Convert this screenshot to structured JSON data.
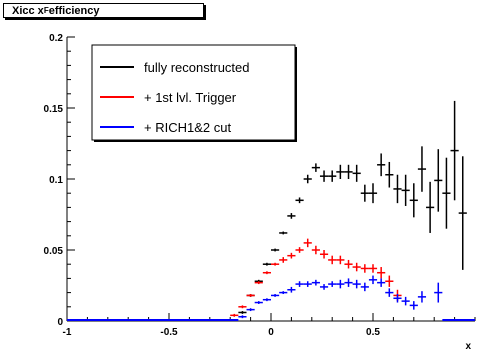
{
  "header": {
    "title_main": "Xicc x",
    "title_sub": "F",
    "title_tail": " efficiency"
  },
  "chart_data": {
    "type": "scatter",
    "title": "Xicc x_F efficiency",
    "xlabel": "x",
    "ylabel": "",
    "xlim": [
      -1,
      1
    ],
    "ylim": [
      0,
      0.2
    ],
    "grid": false,
    "legend_position": "top-left",
    "x_ticks": [
      -1,
      -0.5,
      0,
      0.5
    ],
    "x_tick_labels": [
      "-1",
      "-0.5",
      "0",
      "0.5"
    ],
    "y_ticks": [
      0,
      0.05,
      0.1,
      0.15,
      0.2
    ],
    "y_tick_labels": [
      "0",
      "0.05",
      "0.1",
      "0.15",
      "0.2"
    ],
    "bin_half_width": 0.02,
    "series": [
      {
        "name": "fully reconstructed",
        "color": "#000000",
        "points": [
          {
            "x": -0.14,
            "y": 0.006,
            "err": 0.001
          },
          {
            "x": -0.1,
            "y": 0.018,
            "err": 0.001
          },
          {
            "x": -0.06,
            "y": 0.028,
            "err": 0.001
          },
          {
            "x": -0.02,
            "y": 0.04,
            "err": 0.001
          },
          {
            "x": 0.02,
            "y": 0.05,
            "err": 0.001
          },
          {
            "x": 0.06,
            "y": 0.062,
            "err": 0.001
          },
          {
            "x": 0.1,
            "y": 0.074,
            "err": 0.002
          },
          {
            "x": 0.14,
            "y": 0.085,
            "err": 0.002
          },
          {
            "x": 0.18,
            "y": 0.1,
            "err": 0.003
          },
          {
            "x": 0.22,
            "y": 0.108,
            "err": 0.003
          },
          {
            "x": 0.26,
            "y": 0.102,
            "err": 0.004
          },
          {
            "x": 0.3,
            "y": 0.102,
            "err": 0.004
          },
          {
            "x": 0.34,
            "y": 0.105,
            "err": 0.005
          },
          {
            "x": 0.38,
            "y": 0.105,
            "err": 0.005
          },
          {
            "x": 0.42,
            "y": 0.104,
            "err": 0.006
          },
          {
            "x": 0.46,
            "y": 0.09,
            "err": 0.006
          },
          {
            "x": 0.5,
            "y": 0.09,
            "err": 0.007
          },
          {
            "x": 0.54,
            "y": 0.11,
            "err": 0.008
          },
          {
            "x": 0.58,
            "y": 0.103,
            "err": 0.009
          },
          {
            "x": 0.62,
            "y": 0.093,
            "err": 0.01
          },
          {
            "x": 0.66,
            "y": 0.092,
            "err": 0.011
          },
          {
            "x": 0.7,
            "y": 0.085,
            "err": 0.012
          },
          {
            "x": 0.74,
            "y": 0.107,
            "err": 0.016
          },
          {
            "x": 0.78,
            "y": 0.08,
            "err": 0.018
          },
          {
            "x": 0.82,
            "y": 0.099,
            "err": 0.022
          },
          {
            "x": 0.86,
            "y": 0.09,
            "err": 0.025
          },
          {
            "x": 0.9,
            "y": 0.12,
            "err": 0.035
          },
          {
            "x": 0.94,
            "y": 0.076,
            "err": 0.04
          }
        ]
      },
      {
        "name": "+ 1st lvl. Trigger",
        "color": "#ff0000",
        "points": [
          {
            "x": -0.18,
            "y": 0.004,
            "err": 0.001
          },
          {
            "x": -0.14,
            "y": 0.01,
            "err": 0.001
          },
          {
            "x": -0.1,
            "y": 0.018,
            "err": 0.001
          },
          {
            "x": -0.06,
            "y": 0.027,
            "err": 0.001
          },
          {
            "x": -0.02,
            "y": 0.034,
            "err": 0.001
          },
          {
            "x": 0.02,
            "y": 0.04,
            "err": 0.001
          },
          {
            "x": 0.06,
            "y": 0.043,
            "err": 0.002
          },
          {
            "x": 0.1,
            "y": 0.046,
            "err": 0.002
          },
          {
            "x": 0.14,
            "y": 0.05,
            "err": 0.002
          },
          {
            "x": 0.18,
            "y": 0.055,
            "err": 0.003
          },
          {
            "x": 0.22,
            "y": 0.05,
            "err": 0.003
          },
          {
            "x": 0.26,
            "y": 0.047,
            "err": 0.003
          },
          {
            "x": 0.3,
            "y": 0.043,
            "err": 0.003
          },
          {
            "x": 0.34,
            "y": 0.043,
            "err": 0.003
          },
          {
            "x": 0.38,
            "y": 0.04,
            "err": 0.003
          },
          {
            "x": 0.42,
            "y": 0.038,
            "err": 0.003
          },
          {
            "x": 0.46,
            "y": 0.037,
            "err": 0.003
          },
          {
            "x": 0.5,
            "y": 0.037,
            "err": 0.003
          },
          {
            "x": 0.54,
            "y": 0.034,
            "err": 0.004
          },
          {
            "x": 0.58,
            "y": 0.028,
            "err": 0.004
          },
          {
            "x": 0.62,
            "y": 0.018,
            "err": 0.004
          }
        ]
      },
      {
        "name": "+ RICH1&2 cut",
        "color": "#0000ff",
        "points": [
          {
            "x": -0.14,
            "y": 0.003,
            "err": 0.001
          },
          {
            "x": -0.1,
            "y": 0.008,
            "err": 0.001
          },
          {
            "x": -0.06,
            "y": 0.013,
            "err": 0.001
          },
          {
            "x": -0.02,
            "y": 0.015,
            "err": 0.001
          },
          {
            "x": 0.02,
            "y": 0.018,
            "err": 0.001
          },
          {
            "x": 0.06,
            "y": 0.02,
            "err": 0.001
          },
          {
            "x": 0.1,
            "y": 0.022,
            "err": 0.002
          },
          {
            "x": 0.14,
            "y": 0.026,
            "err": 0.002
          },
          {
            "x": 0.18,
            "y": 0.026,
            "err": 0.002
          },
          {
            "x": 0.22,
            "y": 0.027,
            "err": 0.002
          },
          {
            "x": 0.26,
            "y": 0.024,
            "err": 0.002
          },
          {
            "x": 0.3,
            "y": 0.026,
            "err": 0.002
          },
          {
            "x": 0.34,
            "y": 0.026,
            "err": 0.003
          },
          {
            "x": 0.38,
            "y": 0.027,
            "err": 0.003
          },
          {
            "x": 0.42,
            "y": 0.026,
            "err": 0.003
          },
          {
            "x": 0.46,
            "y": 0.024,
            "err": 0.003
          },
          {
            "x": 0.5,
            "y": 0.029,
            "err": 0.003
          },
          {
            "x": 0.54,
            "y": 0.027,
            "err": 0.003
          },
          {
            "x": 0.58,
            "y": 0.02,
            "err": 0.003
          },
          {
            "x": 0.62,
            "y": 0.016,
            "err": 0.003
          },
          {
            "x": 0.66,
            "y": 0.014,
            "err": 0.003
          },
          {
            "x": 0.7,
            "y": 0.011,
            "err": 0.003
          },
          {
            "x": 0.74,
            "y": 0.017,
            "err": 0.004
          },
          {
            "x": 0.82,
            "y": 0.02,
            "err": 0.007
          }
        ]
      }
    ]
  }
}
